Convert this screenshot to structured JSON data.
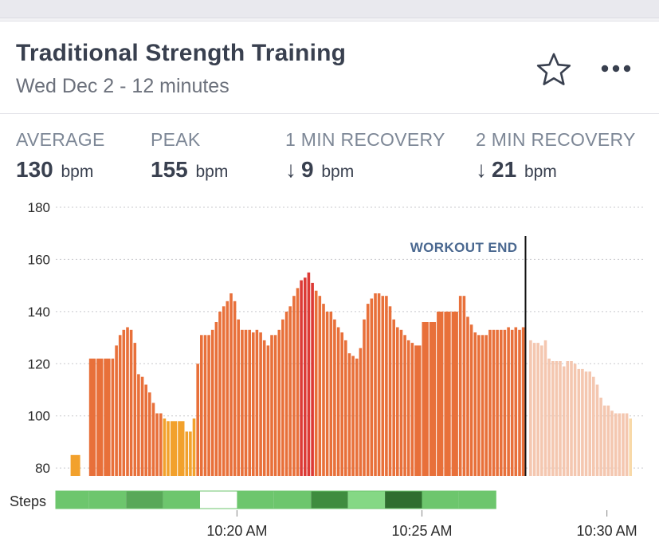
{
  "header": {
    "title": "Traditional Strength Training",
    "subtitle": "Wed Dec 2 - 12 minutes",
    "favorite_icon": "star-outline-icon",
    "more_icon": "more-dots-icon"
  },
  "stats": [
    {
      "label": "AVERAGE",
      "value": "130",
      "unit": "bpm",
      "arrow": ""
    },
    {
      "label": "PEAK",
      "value": "155",
      "unit": "bpm",
      "arrow": ""
    },
    {
      "label": "1 MIN RECOVERY",
      "value": "9",
      "unit": "bpm",
      "arrow": "↓"
    },
    {
      "label": "2 MIN RECOVERY",
      "value": "21",
      "unit": "bpm",
      "arrow": "↓"
    }
  ],
  "chart_data": {
    "type": "bar",
    "ylim": [
      77,
      180
    ],
    "yticks": [
      80,
      100,
      120,
      140,
      160,
      180
    ],
    "x_range_minutes": [
      -4.9,
      11.0
    ],
    "x_origin": "10:20 AM",
    "xticks": [
      {
        "t": 0,
        "label": "10:20 AM"
      },
      {
        "t": 5,
        "label": "10:25 AM"
      },
      {
        "t": 10,
        "label": "10:30 AM"
      }
    ],
    "workout_end": {
      "t": 7.8,
      "label": "WORKOUT END"
    },
    "steps_label": "Steps",
    "series": [
      {
        "values": [
          {
            "t": -4.5,
            "v": 85
          },
          {
            "t": -4.0,
            "v": 122
          },
          {
            "t": -3.8,
            "v": 122
          },
          {
            "t": -3.6,
            "v": 122
          },
          {
            "t": -3.4,
            "v": 122
          },
          {
            "t": -3.3,
            "v": 127
          },
          {
            "t": -3.2,
            "v": 131
          },
          {
            "t": -3.1,
            "v": 133
          },
          {
            "t": -3.0,
            "v": 134
          },
          {
            "t": -2.9,
            "v": 133
          },
          {
            "t": -2.8,
            "v": 128
          },
          {
            "t": -2.7,
            "v": 116
          },
          {
            "t": -2.6,
            "v": 115
          },
          {
            "t": -2.5,
            "v": 112
          },
          {
            "t": -2.4,
            "v": 109
          },
          {
            "t": -2.3,
            "v": 105
          },
          {
            "t": -2.2,
            "v": 101
          },
          {
            "t": -2.1,
            "v": 101
          },
          {
            "t": -2.0,
            "v": 99
          },
          {
            "t": -1.9,
            "v": 98
          },
          {
            "t": -1.8,
            "v": 98
          },
          {
            "t": -1.6,
            "v": 98
          },
          {
            "t": -1.4,
            "v": 94
          },
          {
            "t": -1.3,
            "v": 94
          },
          {
            "t": -1.2,
            "v": 99
          },
          {
            "t": -1.1,
            "v": 120
          },
          {
            "t": -1.0,
            "v": 131
          },
          {
            "t": -0.9,
            "v": 131
          },
          {
            "t": -0.8,
            "v": 131
          },
          {
            "t": -0.7,
            "v": 133
          },
          {
            "t": -0.6,
            "v": 136
          },
          {
            "t": -0.5,
            "v": 140
          },
          {
            "t": -0.4,
            "v": 142
          },
          {
            "t": -0.3,
            "v": 144
          },
          {
            "t": -0.2,
            "v": 147
          },
          {
            "t": -0.1,
            "v": 144
          },
          {
            "t": 0.0,
            "v": 137
          },
          {
            "t": 0.1,
            "v": 133
          },
          {
            "t": 0.2,
            "v": 133
          },
          {
            "t": 0.3,
            "v": 133
          },
          {
            "t": 0.4,
            "v": 132
          },
          {
            "t": 0.5,
            "v": 133
          },
          {
            "t": 0.6,
            "v": 132
          },
          {
            "t": 0.7,
            "v": 129
          },
          {
            "t": 0.8,
            "v": 127
          },
          {
            "t": 0.9,
            "v": 131
          },
          {
            "t": 1.0,
            "v": 131
          },
          {
            "t": 1.1,
            "v": 133
          },
          {
            "t": 1.2,
            "v": 137
          },
          {
            "t": 1.3,
            "v": 140
          },
          {
            "t": 1.4,
            "v": 142
          },
          {
            "t": 1.5,
            "v": 146
          },
          {
            "t": 1.6,
            "v": 149
          },
          {
            "t": 1.7,
            "v": 152
          },
          {
            "t": 1.8,
            "v": 153
          },
          {
            "t": 1.9,
            "v": 155
          },
          {
            "t": 2.0,
            "v": 151
          },
          {
            "t": 2.1,
            "v": 148
          },
          {
            "t": 2.2,
            "v": 146
          },
          {
            "t": 2.3,
            "v": 143
          },
          {
            "t": 2.4,
            "v": 140
          },
          {
            "t": 2.5,
            "v": 140
          },
          {
            "t": 2.6,
            "v": 137
          },
          {
            "t": 2.7,
            "v": 134
          },
          {
            "t": 2.8,
            "v": 132
          },
          {
            "t": 2.9,
            "v": 129
          },
          {
            "t": 3.0,
            "v": 124
          },
          {
            "t": 3.1,
            "v": 123
          },
          {
            "t": 3.2,
            "v": 122
          },
          {
            "t": 3.3,
            "v": 126
          },
          {
            "t": 3.4,
            "v": 137
          },
          {
            "t": 3.5,
            "v": 143
          },
          {
            "t": 3.6,
            "v": 145
          },
          {
            "t": 3.7,
            "v": 147
          },
          {
            "t": 3.8,
            "v": 147
          },
          {
            "t": 3.9,
            "v": 146
          },
          {
            "t": 4.0,
            "v": 146
          },
          {
            "t": 4.1,
            "v": 142
          },
          {
            "t": 4.2,
            "v": 137
          },
          {
            "t": 4.3,
            "v": 134
          },
          {
            "t": 4.4,
            "v": 133
          },
          {
            "t": 4.5,
            "v": 131
          },
          {
            "t": 4.6,
            "v": 129
          },
          {
            "t": 4.7,
            "v": 128
          },
          {
            "t": 4.8,
            "v": 127
          },
          {
            "t": 5.0,
            "v": 136
          },
          {
            "t": 5.2,
            "v": 136
          },
          {
            "t": 5.4,
            "v": 140
          },
          {
            "t": 5.6,
            "v": 140
          },
          {
            "t": 5.8,
            "v": 140
          },
          {
            "t": 6.0,
            "v": 146
          },
          {
            "t": 6.1,
            "v": 146
          },
          {
            "t": 6.2,
            "v": 138
          },
          {
            "t": 6.3,
            "v": 135
          },
          {
            "t": 6.4,
            "v": 132
          },
          {
            "t": 6.5,
            "v": 131
          },
          {
            "t": 6.6,
            "v": 131
          },
          {
            "t": 6.7,
            "v": 131
          },
          {
            "t": 6.8,
            "v": 133
          },
          {
            "t": 6.9,
            "v": 133
          },
          {
            "t": 7.0,
            "v": 133
          },
          {
            "t": 7.1,
            "v": 133
          },
          {
            "t": 7.2,
            "v": 133
          },
          {
            "t": 7.3,
            "v": 134
          },
          {
            "t": 7.4,
            "v": 133
          },
          {
            "t": 7.5,
            "v": 134
          },
          {
            "t": 7.6,
            "v": 133
          },
          {
            "t": 7.7,
            "v": 134
          },
          {
            "t": 7.9,
            "v": 129
          },
          {
            "t": 8.0,
            "v": 128
          },
          {
            "t": 8.1,
            "v": 128
          },
          {
            "t": 8.2,
            "v": 127
          },
          {
            "t": 8.3,
            "v": 129
          },
          {
            "t": 8.4,
            "v": 122
          },
          {
            "t": 8.5,
            "v": 121
          },
          {
            "t": 8.6,
            "v": 121
          },
          {
            "t": 8.7,
            "v": 121
          },
          {
            "t": 8.8,
            "v": 119
          },
          {
            "t": 8.9,
            "v": 121
          },
          {
            "t": 9.0,
            "v": 121
          },
          {
            "t": 9.1,
            "v": 120
          },
          {
            "t": 9.2,
            "v": 118
          },
          {
            "t": 9.3,
            "v": 118
          },
          {
            "t": 9.4,
            "v": 117
          },
          {
            "t": 9.5,
            "v": 117
          },
          {
            "t": 9.6,
            "v": 115
          },
          {
            "t": 9.7,
            "v": 112
          },
          {
            "t": 9.8,
            "v": 107
          },
          {
            "t": 9.9,
            "v": 104
          },
          {
            "t": 10.0,
            "v": 104
          },
          {
            "t": 10.1,
            "v": 102
          },
          {
            "t": 10.2,
            "v": 101
          },
          {
            "t": 10.3,
            "v": 101
          },
          {
            "t": 10.4,
            "v": 101
          },
          {
            "t": 10.5,
            "v": 101
          },
          {
            "t": 10.6,
            "v": 99
          }
        ]
      }
    ],
    "steps": [
      {
        "t0": -4.9,
        "t1": -4.0,
        "level": 2
      },
      {
        "t0": -4.0,
        "t1": -3.0,
        "level": 2
      },
      {
        "t0": -3.0,
        "t1": -2.0,
        "level": 3
      },
      {
        "t0": -2.0,
        "t1": -1.0,
        "level": 2
      },
      {
        "t0": -1.0,
        "t1": 0.0,
        "level": 0
      },
      {
        "t0": 0.0,
        "t1": 1.0,
        "level": 2
      },
      {
        "t0": 1.0,
        "t1": 2.0,
        "level": 2
      },
      {
        "t0": 2.0,
        "t1": 3.0,
        "level": 4
      },
      {
        "t0": 3.0,
        "t1": 4.0,
        "level": 1
      },
      {
        "t0": 4.0,
        "t1": 5.0,
        "level": 5
      },
      {
        "t0": 5.0,
        "t1": 6.0,
        "level": 2
      },
      {
        "t0": 6.0,
        "t1": 7.0,
        "level": 2
      }
    ],
    "colors": {
      "zone1": "#f2a12c",
      "zone2": "#e8703a",
      "zone3": "#dc3a36",
      "recovery": "#f4c7b0",
      "recovery_low": "#f8d9a8",
      "grid": "#c8c8cc",
      "steps_levels": [
        "#ffffff",
        "#85d885",
        "#6dc66d",
        "#58a858",
        "#3f8c3f",
        "#2f6e2f"
      ]
    }
  }
}
